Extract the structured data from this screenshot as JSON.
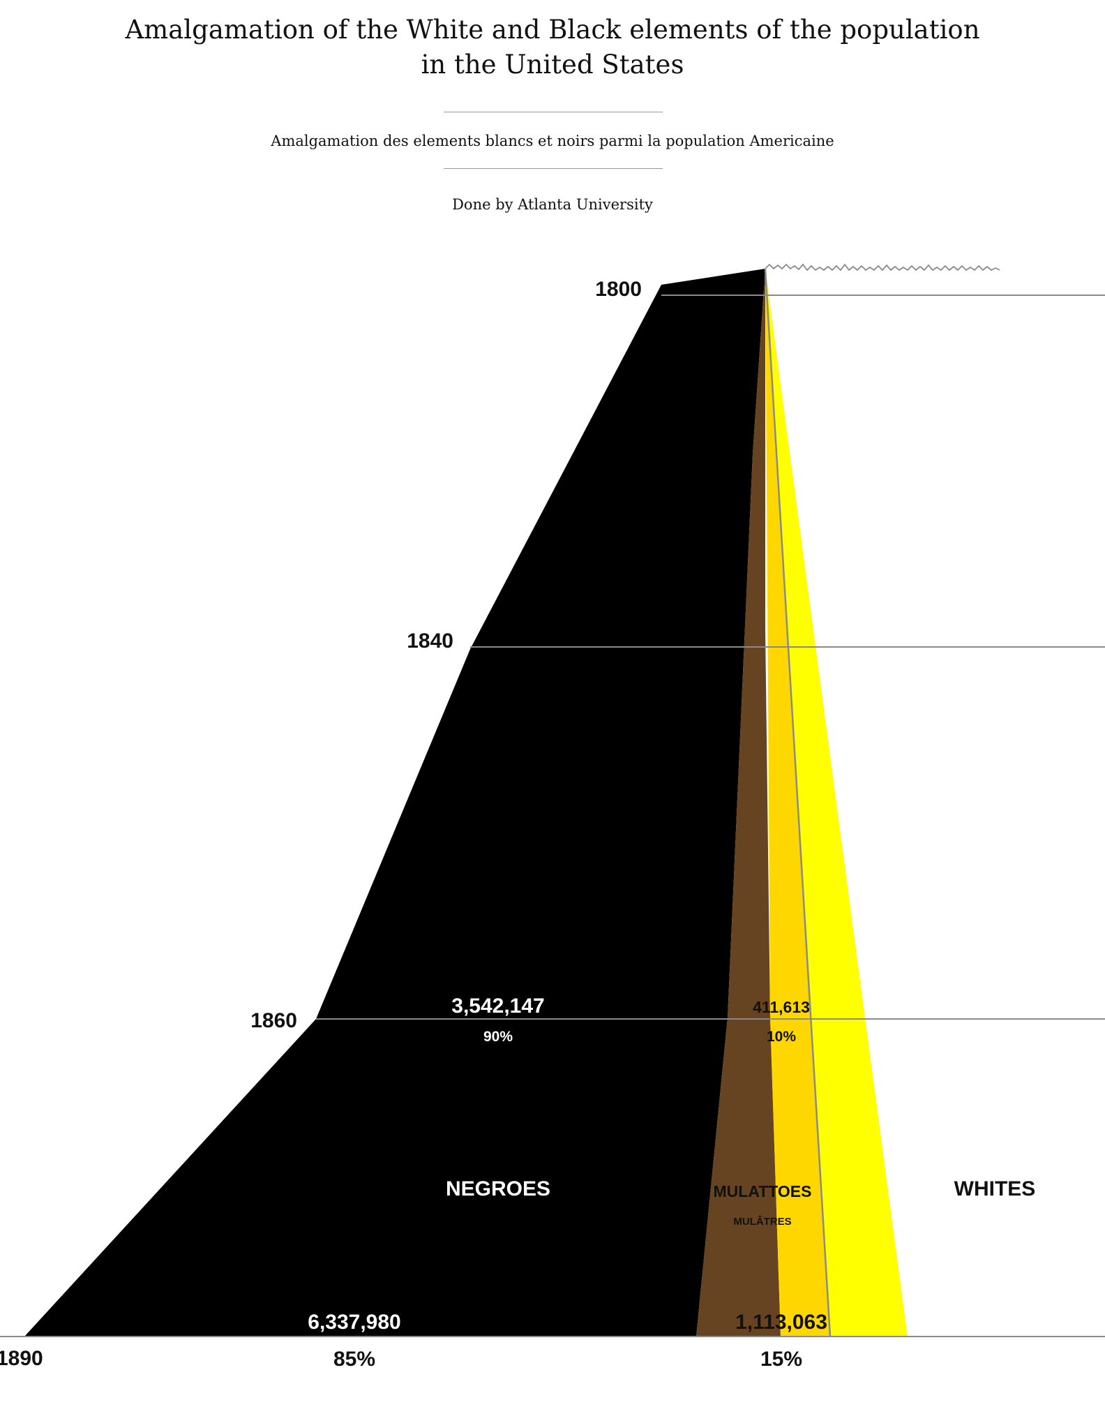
{
  "header": {
    "title_line1": "Amalgamation of the White and Black elements of the population",
    "title_line2": "in the United States",
    "subtitle": "Amalgamation des elements blancs et noirs parmi la population Americaine",
    "credit": "Done by Atlanta University"
  },
  "chart_data": {
    "type": "area",
    "years": [
      "1800",
      "1840",
      "1860",
      "1890"
    ],
    "series": [
      {
        "name": "NEGROES",
        "color": "#000000"
      },
      {
        "name": "MULATTOES",
        "subname": "MULÂTRES",
        "color": "#674421",
        "color2": "#FFD700"
      },
      {
        "name": "WHITES",
        "color": "#FFFF00"
      }
    ],
    "annotations": [
      {
        "year": "1860",
        "series": "NEGROES",
        "value": "3,542,147",
        "percent": "90%"
      },
      {
        "year": "1860",
        "series": "MULATTOES",
        "value": "411,613",
        "percent": "10%"
      },
      {
        "year": "1890",
        "series": "NEGROES",
        "value": "6,337,980",
        "percent": "85%"
      },
      {
        "year": "1890",
        "series": "MULATTOES",
        "value": "1,113,063",
        "percent": "15%"
      }
    ],
    "colors": {
      "negroes": "#000000",
      "mulattoes_brown": "#674421",
      "mulattoes_gold": "#FFD700",
      "whites": "#FFFF00",
      "guide_line": "#8a8a8a"
    }
  }
}
